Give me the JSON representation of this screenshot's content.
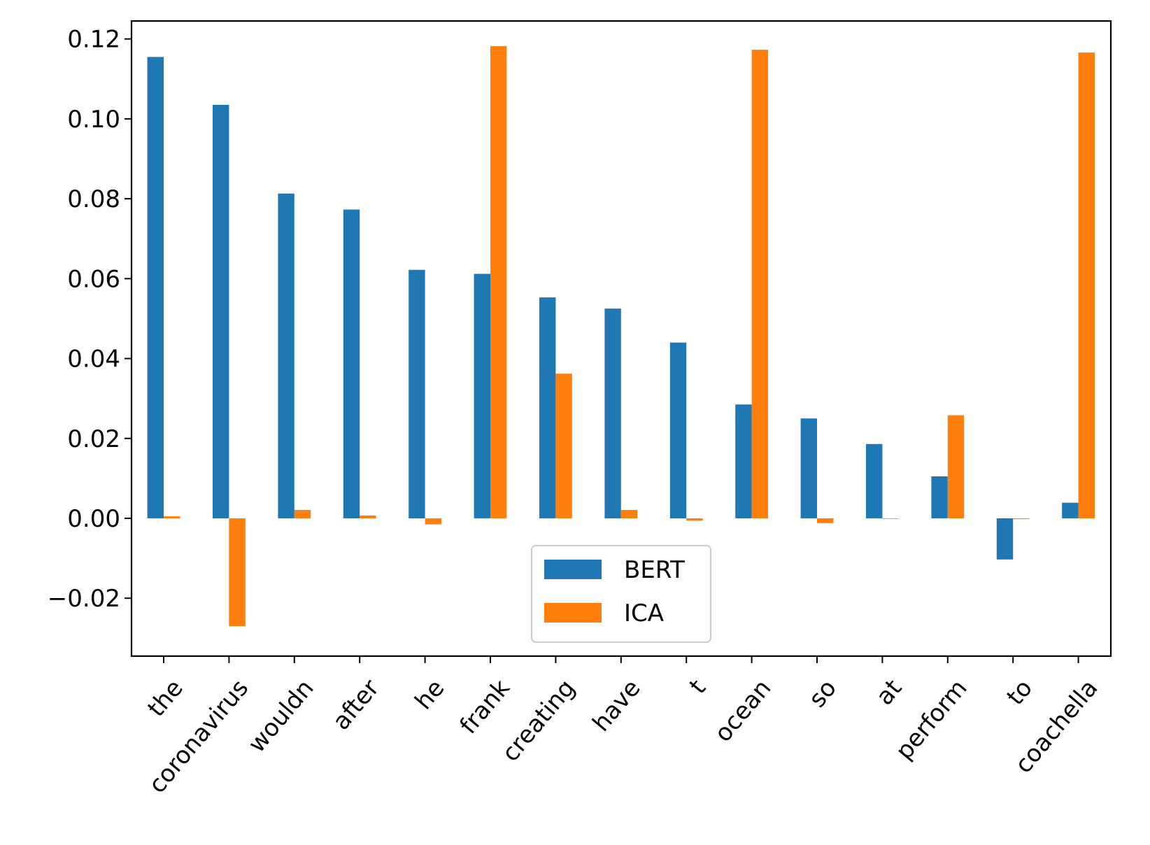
{
  "chart_data": {
    "type": "bar",
    "categories": [
      "the",
      "coronavirus",
      "wouldn",
      "after",
      "he",
      "frank",
      "creating",
      "have",
      "t",
      "ocean",
      "so",
      "at",
      "perform",
      "to",
      "coachella"
    ],
    "series": [
      {
        "name": "BERT",
        "color": "#1f77b4",
        "values": [
          0.1155,
          0.1035,
          0.0813,
          0.0773,
          0.0622,
          0.0612,
          0.0553,
          0.0525,
          0.044,
          0.0285,
          0.025,
          0.0186,
          0.0105,
          -0.0103,
          0.0039
        ]
      },
      {
        "name": "ICA",
        "color": "#ff7f0e",
        "values": [
          0.0005,
          -0.027,
          0.0021,
          0.0007,
          -0.0015,
          0.1182,
          0.0362,
          0.0021,
          -0.0006,
          0.1173,
          -0.0012,
          -0.0001,
          0.0258,
          -0.0002,
          0.1166
        ]
      }
    ],
    "title": "",
    "xlabel": "",
    "ylabel": "",
    "ylim": [
      -0.0345,
      0.1245
    ],
    "yticks": [
      -0.02,
      0.0,
      0.02,
      0.04,
      0.06,
      0.08,
      0.1,
      0.12
    ],
    "ytick_labels": [
      "−0.02",
      "0.00",
      "0.02",
      "0.04",
      "0.06",
      "0.08",
      "0.10",
      "0.12"
    ],
    "xtick_rotation": 50,
    "grid": false,
    "legend_position": "bottom-center"
  }
}
